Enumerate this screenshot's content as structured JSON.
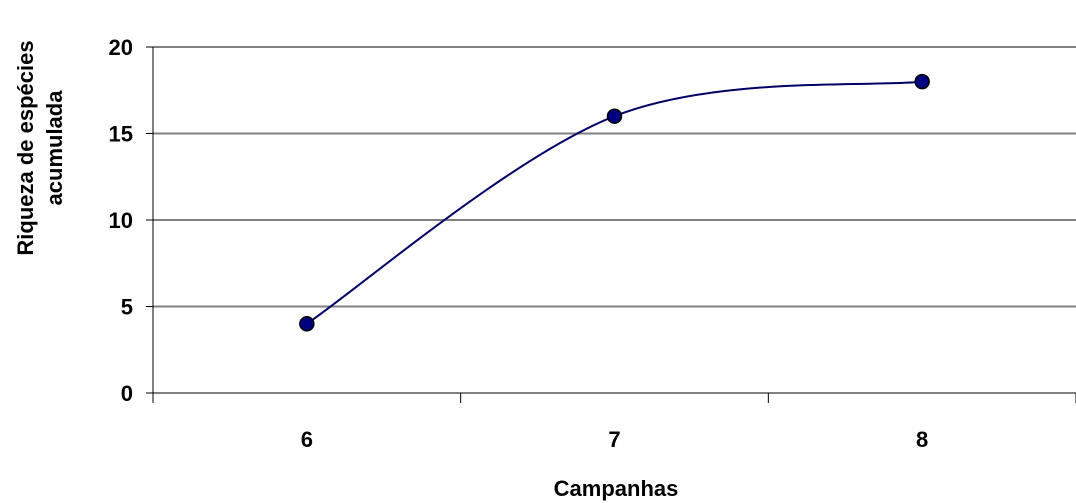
{
  "chart_data": {
    "type": "line",
    "categories": [
      "6",
      "7",
      "8"
    ],
    "series": [
      {
        "values": [
          4,
          16,
          18
        ]
      }
    ],
    "xlabel": "Campanhas",
    "ylabel_lines": [
      "Riqueza de espécies",
      "acumulada"
    ],
    "ylim": [
      0,
      20
    ],
    "yticks": [
      0,
      5,
      10,
      15,
      20
    ],
    "grid": true,
    "smooth": true,
    "colors": {
      "line": "#000066",
      "marker_fill": "#000080",
      "marker_stroke": "#000000",
      "grid": "#808080",
      "axis": "#000000"
    }
  }
}
